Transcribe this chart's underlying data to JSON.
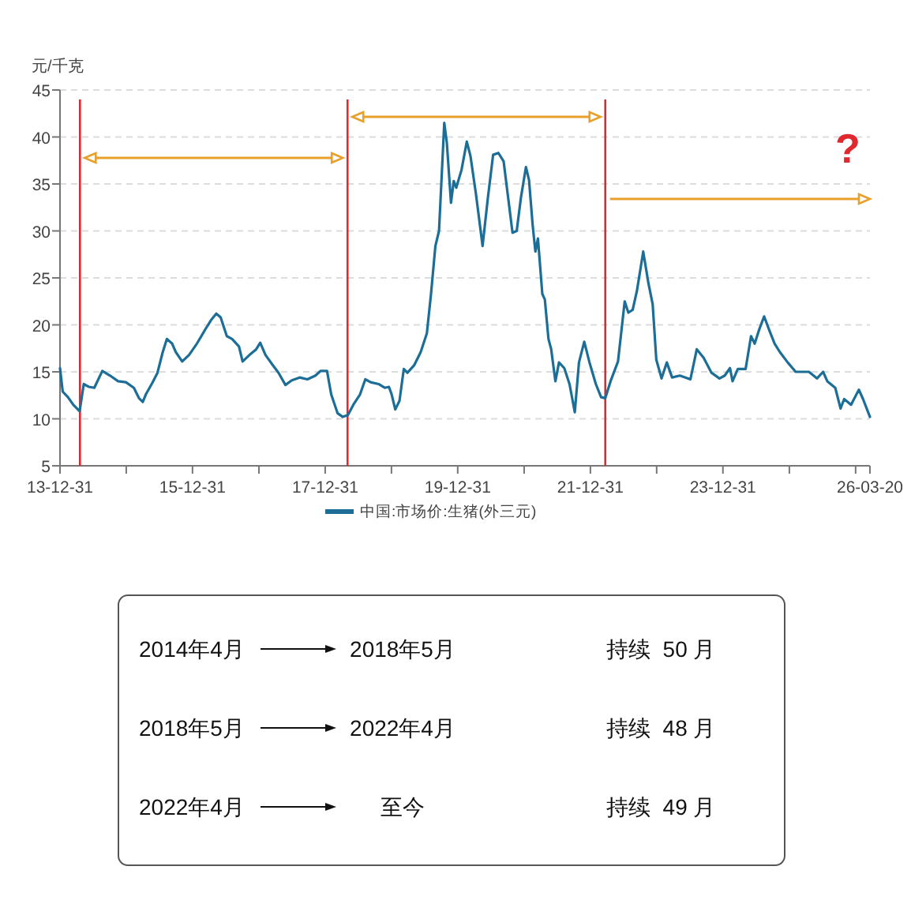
{
  "chart_data": [
    {
      "type": "line",
      "ylabel": "元/千克",
      "annotations": [
        "?"
      ],
      "xlim": [
        "2013-12-31",
        "2026-03-20"
      ],
      "xticks": [
        {
          "value": "2013-12-31",
          "label": "13-12-31"
        },
        {
          "value": "2014-12-31",
          "label": null
        },
        {
          "value": "2015-12-31",
          "label": "15-12-31"
        },
        {
          "value": "2016-12-31",
          "label": null
        },
        {
          "value": "2017-12-31",
          "label": "17-12-31"
        },
        {
          "value": "2018-12-31",
          "label": null
        },
        {
          "value": "2019-12-31",
          "label": "19-12-31"
        },
        {
          "value": "2020-12-31",
          "label": null
        },
        {
          "value": "2021-12-31",
          "label": "21-12-31"
        },
        {
          "value": "2022-12-31",
          "label": null
        },
        {
          "value": "2023-12-31",
          "label": "23-12-31"
        },
        {
          "value": "2024-12-31",
          "label": null
        },
        {
          "value": "2025-12-31",
          "label": null
        },
        {
          "value": "2026-03-20",
          "label": "26-03-20"
        }
      ],
      "ylim": [
        5,
        45
      ],
      "yticks": [
        5,
        10,
        15,
        20,
        25,
        30,
        35,
        40,
        45
      ],
      "grid": "y",
      "legend": "bottom",
      "ref_lines": [
        {
          "axis": "x",
          "value": "2014-04-20",
          "color": "#e0282e"
        },
        {
          "axis": "x",
          "value": "2018-05-03",
          "color": "#e0282e"
        },
        {
          "axis": "x",
          "value": "2022-03-23",
          "color": "#e0282e"
        }
      ],
      "series": [
        {
          "name": "中国:市场价:生猪(外三元)",
          "color": "#1c6e97",
          "x": [
            "2013-12-31",
            "2014-01-15",
            "2014-02-13",
            "2014-03-14",
            "2014-04-18",
            "2014-05-11",
            "2014-06-09",
            "2014-07-08",
            "2014-08-21",
            "2014-10-03",
            "2014-11-16",
            "2014-12-29",
            "2015-02-11",
            "2015-03-11",
            "2015-04-01",
            "2015-04-18",
            "2015-05-23",
            "2015-06-21",
            "2015-07-20",
            "2015-08-12",
            "2015-09-10",
            "2015-09-30",
            "2015-11-04",
            "2015-12-12",
            "2016-01-24",
            "2016-03-13",
            "2016-04-11",
            "2016-05-10",
            "2016-06-03",
            "2016-07-07",
            "2016-08-05",
            "2016-09-12",
            "2016-10-02",
            "2016-11-09",
            "2016-12-16",
            "2017-01-07",
            "2017-02-05",
            "2017-03-14",
            "2017-04-18",
            "2017-05-26",
            "2017-06-30",
            "2017-08-12",
            "2017-09-24",
            "2017-11-07",
            "2017-12-06",
            "2018-01-10",
            "2018-02-02",
            "2018-03-09",
            "2018-04-07",
            "2018-05-05",
            "2018-06-04",
            "2018-07-11",
            "2018-08-09",
            "2018-09-07",
            "2018-10-21",
            "2018-11-24",
            "2018-12-17",
            "2019-01-01",
            "2019-01-21",
            "2019-02-13",
            "2019-03-09",
            "2019-03-29",
            "2019-05-05",
            "2019-06-10",
            "2019-07-14",
            "2019-08-06",
            "2019-08-30",
            "2019-09-19",
            "2019-10-18",
            "2019-11-01",
            "2019-11-24",
            "2019-12-09",
            "2019-12-23",
            "2020-01-21",
            "2020-02-19",
            "2020-03-10",
            "2020-04-09",
            "2020-05-16",
            "2020-06-14",
            "2020-07-13",
            "2020-08-11",
            "2020-09-09",
            "2020-10-08",
            "2020-10-28",
            "2020-11-20",
            "2020-12-13",
            "2021-01-10",
            "2021-01-27",
            "2021-02-16",
            "2021-03-03",
            "2021-03-17",
            "2021-04-10",
            "2021-04-24",
            "2021-05-14",
            "2021-05-29",
            "2021-06-21",
            "2021-07-11",
            "2021-08-09",
            "2021-09-07",
            "2021-10-06",
            "2021-10-29",
            "2021-11-27",
            "2021-12-26",
            "2022-01-30",
            "2022-02-28",
            "2022-03-23",
            "2022-04-21",
            "2022-06-01",
            "2022-07-08",
            "2022-07-28",
            "2022-08-21",
            "2022-09-13",
            "2022-10-18",
            "2022-11-16",
            "2022-12-09",
            "2022-12-29",
            "2023-01-27",
            "2023-02-25",
            "2023-03-26",
            "2023-05-08",
            "2023-07-05",
            "2023-08-09",
            "2023-09-16",
            "2023-10-29",
            "2023-12-12",
            "2024-01-10",
            "2024-02-08",
            "2024-02-22",
            "2024-03-22",
            "2024-05-04",
            "2024-06-03",
            "2024-06-23",
            "2024-07-16",
            "2024-08-14",
            "2024-09-12",
            "2024-10-11",
            "2024-11-09",
            "2024-12-22",
            "2025-02-04",
            "2025-04-18",
            "2025-06-01",
            "2025-07-05",
            "2025-07-28",
            "2025-09-10",
            "2025-10-09",
            "2025-10-29",
            "2025-12-06",
            "2026-01-18",
            "2026-02-10",
            "2026-03-20"
          ],
          "values": [
            15.4,
            12.9,
            12.3,
            11.5,
            10.8,
            13.7,
            13.4,
            13.3,
            15.1,
            14.6,
            14.0,
            13.9,
            13.3,
            12.2,
            11.8,
            12.6,
            13.8,
            14.9,
            17.1,
            18.5,
            18.0,
            17.1,
            16.1,
            16.8,
            18.0,
            19.6,
            20.5,
            21.2,
            20.8,
            18.8,
            18.5,
            17.7,
            16.1,
            16.8,
            17.4,
            18.1,
            16.8,
            15.8,
            14.9,
            13.6,
            14.1,
            14.4,
            14.2,
            14.6,
            15.1,
            15.1,
            12.6,
            10.6,
            10.2,
            10.4,
            11.5,
            12.6,
            14.2,
            13.9,
            13.7,
            13.3,
            13.4,
            12.6,
            11.0,
            11.9,
            15.3,
            14.9,
            15.7,
            17.1,
            19.1,
            23.3,
            28.4,
            30.0,
            41.5,
            39.4,
            33.0,
            35.3,
            34.6,
            36.5,
            39.5,
            38.0,
            34.0,
            28.4,
            33.5,
            38.1,
            38.3,
            37.4,
            32.9,
            29.8,
            30.0,
            33.5,
            36.8,
            35.4,
            30.6,
            27.8,
            29.2,
            23.3,
            22.7,
            18.5,
            17.4,
            14.0,
            16.0,
            15.4,
            13.7,
            10.7,
            16.0,
            18.2,
            16.0,
            13.7,
            12.3,
            12.2,
            14.0,
            16.1,
            22.5,
            21.3,
            21.6,
            23.6,
            27.8,
            24.4,
            22.2,
            16.3,
            14.3,
            16.0,
            14.4,
            14.6,
            14.2,
            17.4,
            16.5,
            14.9,
            14.3,
            14.6,
            15.4,
            14.0,
            15.3,
            15.3,
            18.8,
            18.0,
            19.4,
            20.9,
            19.4,
            18.0,
            17.1,
            16.0,
            15.0,
            15.0,
            14.3,
            15.0,
            14.0,
            13.3,
            11.1,
            12.1,
            11.5,
            13.1,
            12.1,
            10.2
          ]
        }
      ]
    },
    {
      "type": "other",
      "annotations": [
        "2014年4月",
        "2018年5月",
        "持续  50 月",
        "2018年5月",
        "2022年4月",
        "持续  48 月",
        "2022年4月",
        "至今",
        "持续  49 月"
      ]
    }
  ]
}
